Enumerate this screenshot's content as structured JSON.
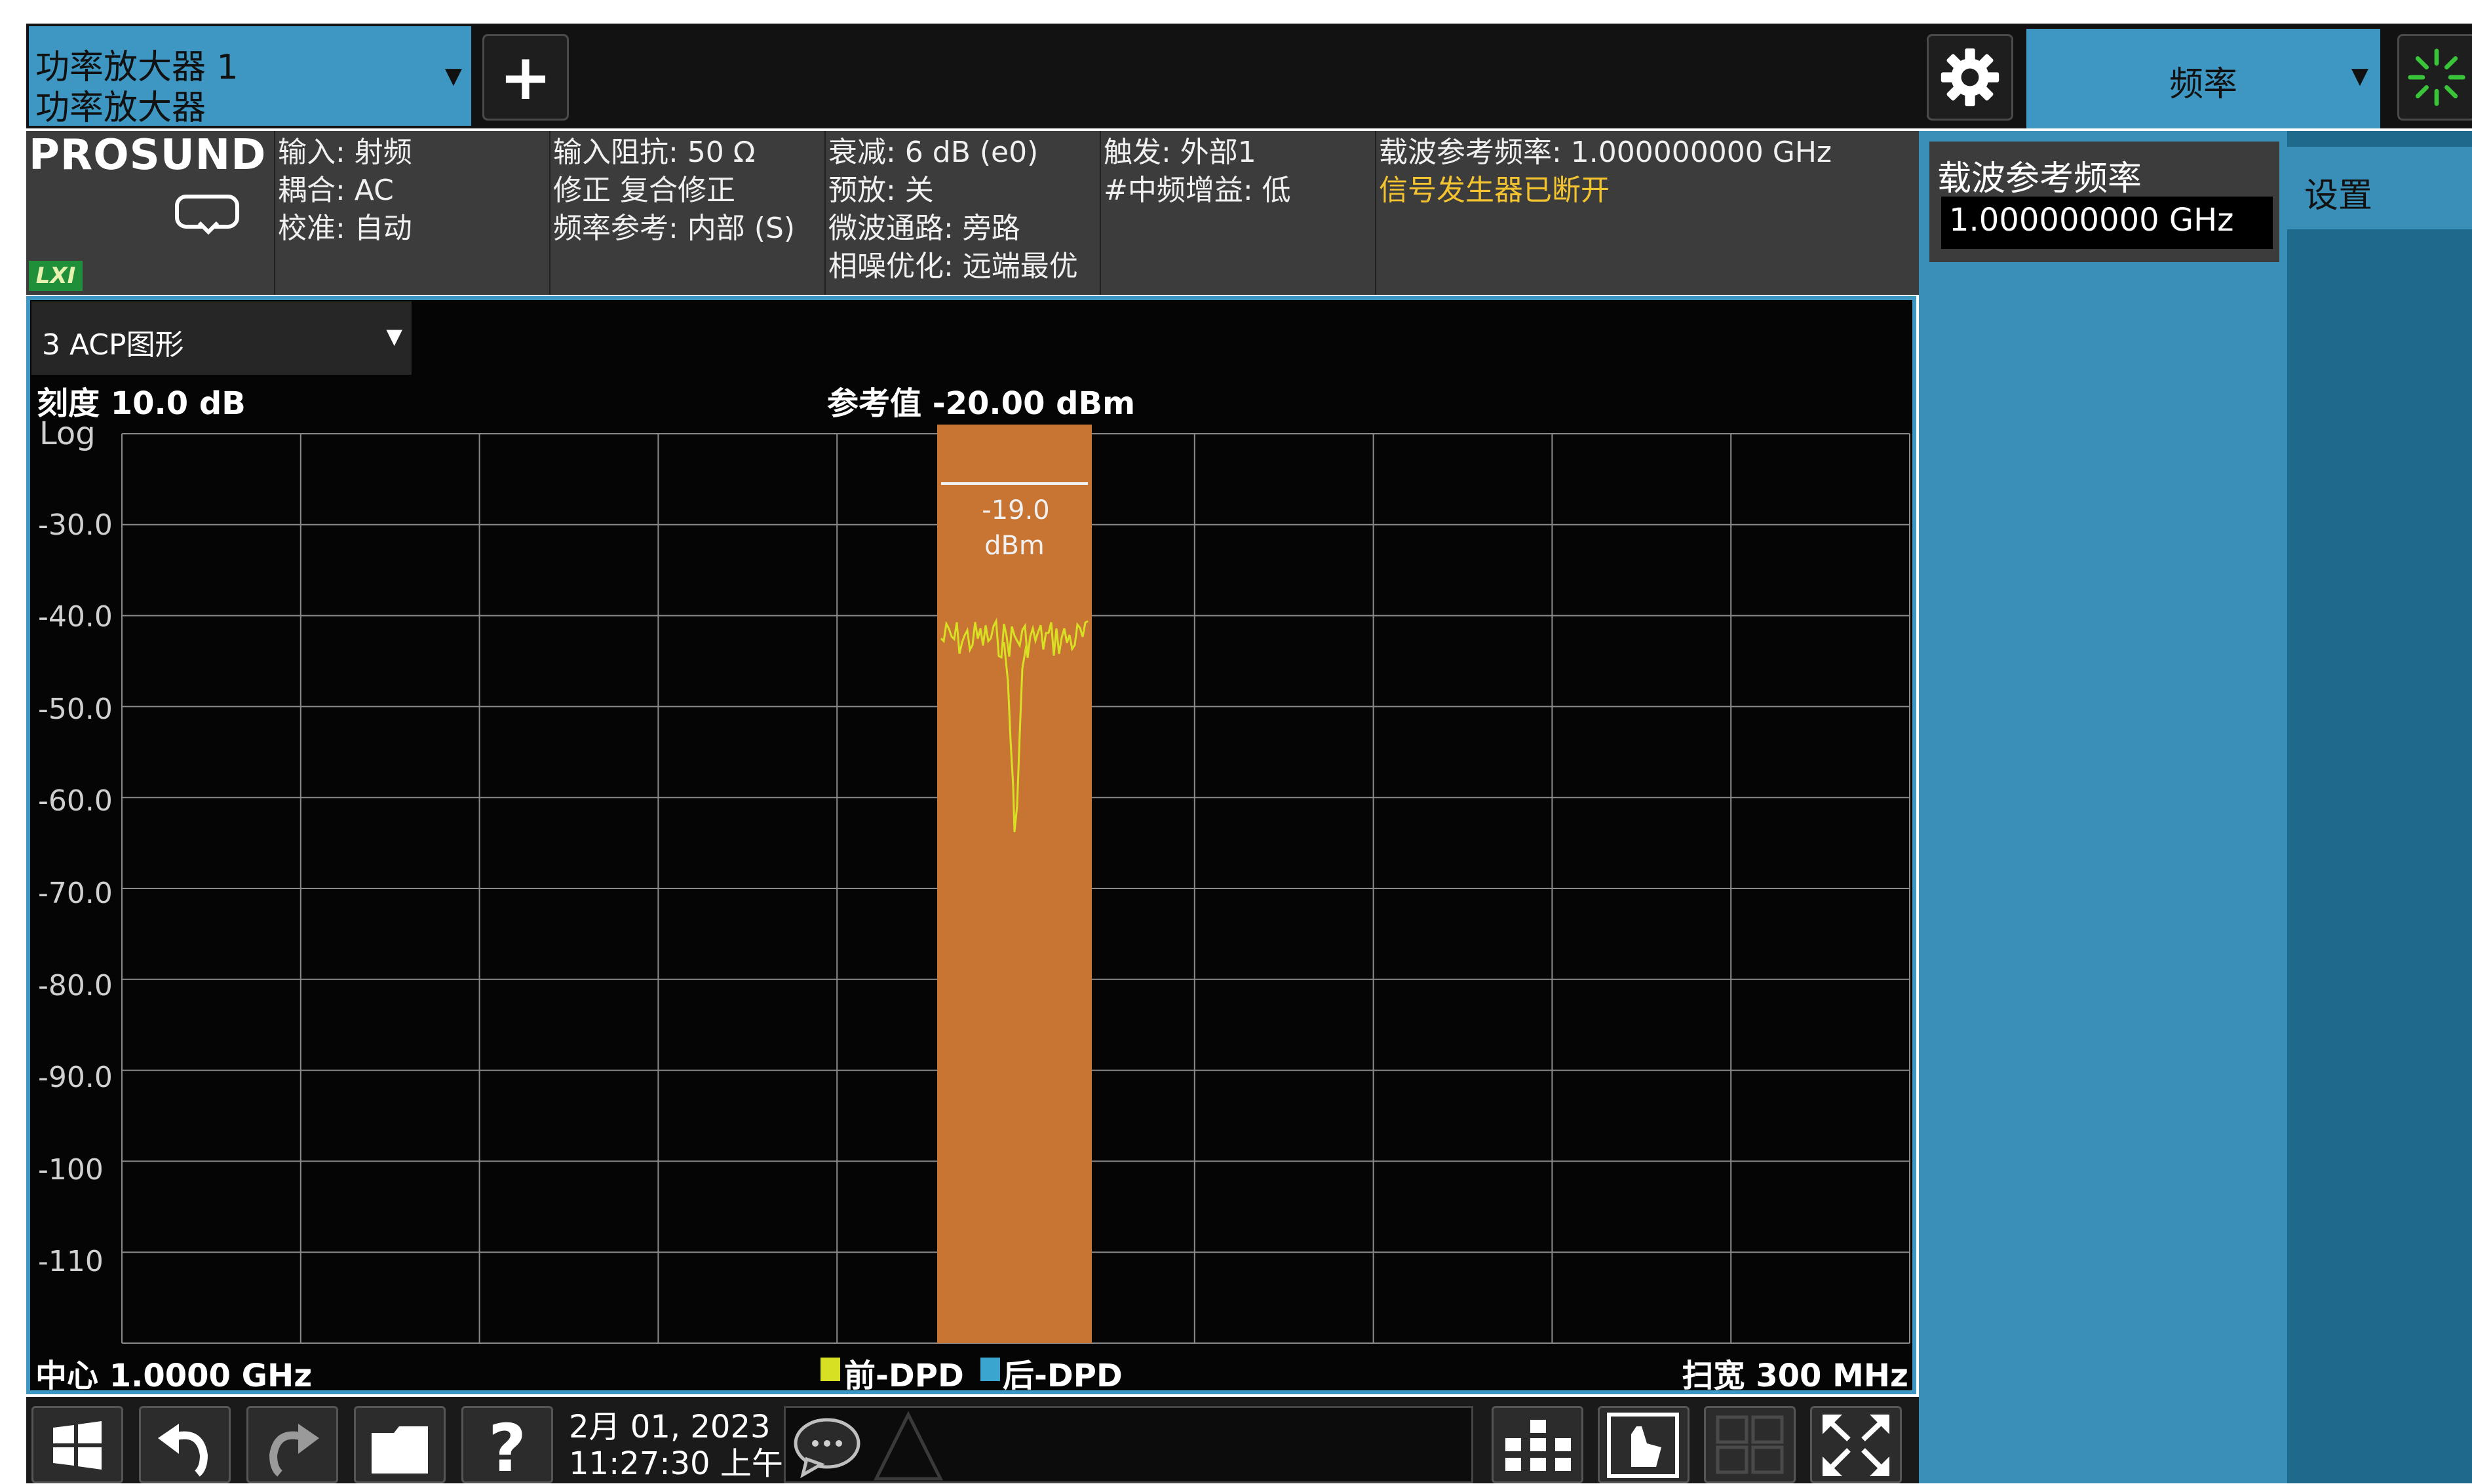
{
  "tab": {
    "line1": "功率放大器 1",
    "line2": "功率放大器"
  },
  "toolbar": {
    "plus_label": "+",
    "freq_menu": "频率"
  },
  "brand": {
    "name": "PROSUND",
    "lxi": "LXI"
  },
  "info": {
    "col1": [
      "输入: 射频",
      "耦合: AC",
      "校准: 自动"
    ],
    "col2": [
      "输入阻抗: 50 Ω",
      "修正 复合修正",
      "频率参考: 内部 (S)"
    ],
    "col3": [
      "衰减: 6 dB (e0)",
      "预放: 关",
      "微波通路: 旁路",
      "相噪优化: 远端最优"
    ],
    "col4": [
      "触发: 外部1",
      "#中频增益: 低"
    ],
    "col5_line1": "载波参考频率: 1.000000000 GHz",
    "col5_warning": "信号发生器已断开"
  },
  "window": {
    "trace_selector": "3 ACP图形",
    "scale_label": "刻度 10.0 dB",
    "log_label": "Log",
    "ref_label": "参考值 -20.00 dBm",
    "y_ticks": [
      "-30.0",
      "-40.0",
      "-50.0",
      "-60.0",
      "-70.0",
      "-80.0",
      "-90.0",
      "-100",
      "-110"
    ],
    "center_label": "中心 1.0000 GHz",
    "span_label": "扫宽 300 MHz",
    "legend_pre": "前-DPD",
    "legend_post": "后-DPD",
    "channel_power_value": "-19.0",
    "channel_power_unit": "dBm"
  },
  "colors": {
    "accent": "#3d97c2",
    "channel_fill": "#c87533",
    "pre_dpd_trace": "#d8e024",
    "post_dpd_trace": "#3aa6d0",
    "warning": "#f4c430"
  },
  "panel": {
    "carrier_title": "载波参考频率",
    "carrier_value": "1.000000000 GHz",
    "settings_tab": "设置"
  },
  "bottom": {
    "date": "2月 01, 2023",
    "time": "11:27:30 上午"
  },
  "icons": [
    "gear-icon",
    "spinner-icon",
    "display-toggle-icon",
    "windows-icon",
    "undo-icon",
    "redo-icon",
    "folder-icon",
    "help-icon",
    "message-icon",
    "warning-triangle-icon",
    "layout-icon",
    "touch-icon",
    "multiwindow-icon",
    "fullscreen-icon"
  ]
}
